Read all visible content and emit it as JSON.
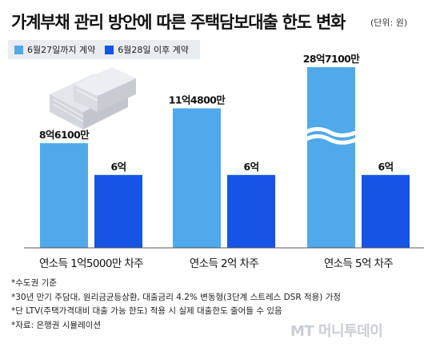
{
  "title": "가계부채 관리 방안에 따른 주택담보대출 한도 변화",
  "unit_label": "(단위: 원)",
  "legend": [
    {
      "label": "6월27일까지 계약",
      "color": "#4fa9ea"
    },
    {
      "label": "6월28일 이후 계약",
      "color": "#1554e5"
    }
  ],
  "chart_data": {
    "type": "bar",
    "unit": "억 원",
    "categories": [
      "연소득 1억5000만 차주",
      "연소득 2억 차주",
      "연소득 5억 차주"
    ],
    "series": [
      {
        "name": "6월27일까지 계약",
        "values": [
          8.61,
          11.48,
          28.71
        ],
        "labels": [
          "8억6100만",
          "11억4800만",
          "28억7100만"
        ]
      },
      {
        "name": "6월28일 이후 계약",
        "values": [
          6,
          6,
          6
        ],
        "labels": [
          "6억",
          "6억",
          "6억"
        ]
      }
    ],
    "axis_break": {
      "category_index": 2,
      "series_index": 0
    }
  },
  "footnotes": [
    "*수도권 기준",
    "*30년 만기 주담대, 원리금균등상환, 대출금리 4.2% 변동형(3단계 스트레스 DSR 적용) 가정",
    "*단 LTV(주택가격대비 대출 가능 한도) 적용 시 실제 대출한도 줄어들 수 있음",
    "*자료: 은행권 시뮬레이션"
  ],
  "logo_text": "MT 머니투데이",
  "colors": {
    "bar_before": "#4fa9ea",
    "bar_after": "#1554e5",
    "baseline": "#555555"
  }
}
